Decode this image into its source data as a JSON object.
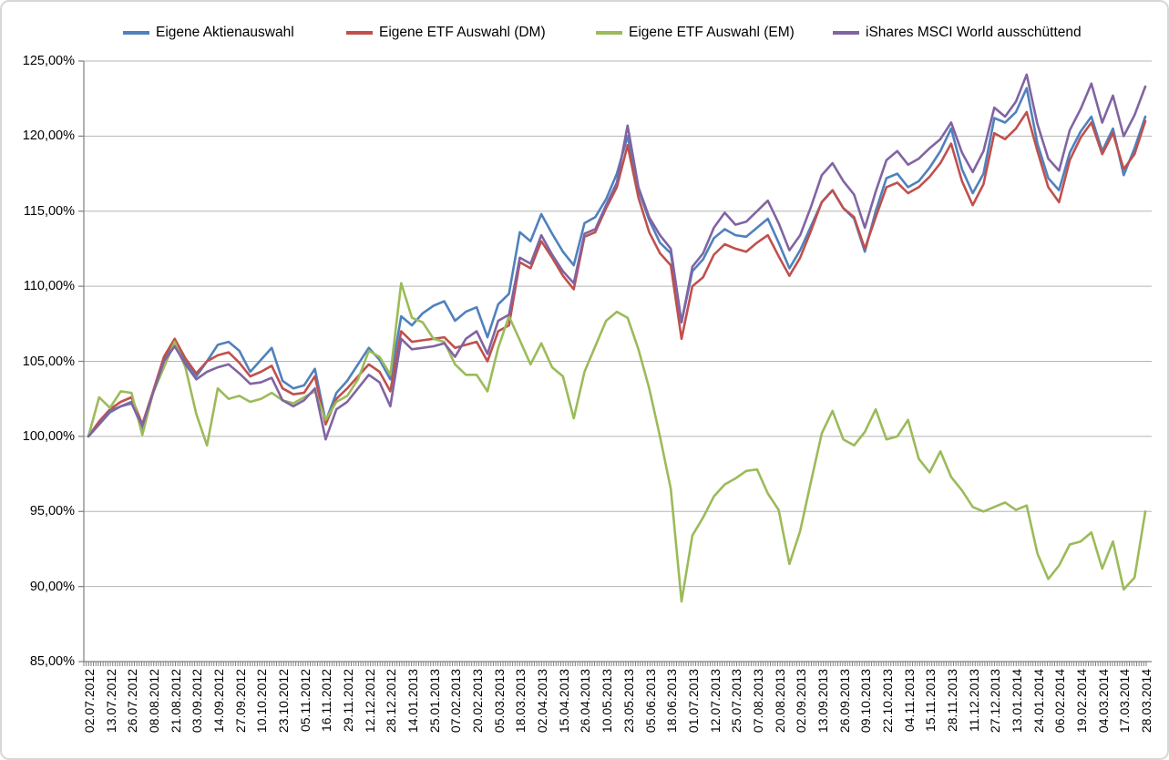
{
  "chart_data": {
    "type": "line",
    "title": "",
    "legend_position": "top",
    "grid": true,
    "ylim": [
      85,
      125
    ],
    "y_gridline_step": 5,
    "y_tick_labels": [
      "125,00%",
      "120,00%",
      "115,00%",
      "110,00%",
      "105,00%",
      "100,00%",
      "95,00%",
      "90,00%",
      "85,00%"
    ],
    "x_axis_note": "daily data 02.07.2012-28.03.2014, labels every ~9 trading days, rotated 90deg",
    "x_tick_labels": [
      "02.07.2012",
      "13.07.2012",
      "26.07.2012",
      "08.08.2012",
      "21.08.2012",
      "03.09.2012",
      "14.09.2012",
      "27.09.2012",
      "10.10.2012",
      "23.10.2012",
      "05.11.2012",
      "16.11.2012",
      "29.11.2012",
      "12.12.2012",
      "28.12.2012",
      "14.01.2013",
      "25.01.2013",
      "07.02.2013",
      "20.02.2013",
      "05.03.2013",
      "18.03.2013",
      "02.04.2013",
      "15.04.2013",
      "26.04.2013",
      "10.05.2013",
      "23.05.2013",
      "05.06.2013",
      "18.06.2013",
      "01.07.2013",
      "12.07.2013",
      "25.07.2013",
      "07.08.2013",
      "20.08.2013",
      "02.09.2013",
      "13.09.2013",
      "26.09.2013",
      "09.10.2013",
      "22.10.2013",
      "04.11.2013",
      "15.11.2013",
      "28.11.2013",
      "11.12.2013",
      "27.12.2013",
      "13.01.2014",
      "24.01.2014",
      "06.02.2014",
      "19.02.2014",
      "04.03.2014",
      "17.03.2014",
      "28.03.2014"
    ],
    "values_per_label": 2,
    "unit": "percent",
    "series": [
      {
        "name": "Eigene Aktienauswahl",
        "color": "#4F81BD",
        "values": [
          100.0,
          100.8,
          101.6,
          102.0,
          102.3,
          100.5,
          102.9,
          105.2,
          106.3,
          105.0,
          104.0,
          105.0,
          106.1,
          106.3,
          105.7,
          104.3,
          105.1,
          105.9,
          103.7,
          103.2,
          103.4,
          104.5,
          101.0,
          102.9,
          103.7,
          104.8,
          105.9,
          105.1,
          103.8,
          108.0,
          107.4,
          108.2,
          108.7,
          109.0,
          107.7,
          108.3,
          108.6,
          106.6,
          108.8,
          109.5,
          113.6,
          113.0,
          114.8,
          113.5,
          112.3,
          111.4,
          114.2,
          114.6,
          115.8,
          117.5,
          120.0,
          116.4,
          114.4,
          112.9,
          112.2,
          107.6,
          111.0,
          111.8,
          113.2,
          113.8,
          113.4,
          113.3,
          113.9,
          114.5,
          112.9,
          111.2,
          112.4,
          114.0,
          115.6,
          116.4,
          115.2,
          114.5,
          112.3,
          115.0,
          117.2,
          117.5,
          116.6,
          117.0,
          117.9,
          119.0,
          120.5,
          117.8,
          116.2,
          117.5,
          121.2,
          120.9,
          121.6,
          123.2,
          119.5,
          117.2,
          116.4,
          118.9,
          120.3,
          121.3,
          119.0,
          120.5,
          117.4,
          119.2,
          121.3
        ]
      },
      {
        "name": "Eigene ETF Auswahl (DM)",
        "color": "#C0504D",
        "values": [
          100.0,
          101.0,
          101.8,
          102.3,
          102.6,
          100.8,
          103.0,
          105.3,
          106.5,
          105.2,
          104.2,
          105.0,
          105.4,
          105.6,
          104.9,
          104.0,
          104.3,
          104.7,
          103.2,
          102.8,
          102.9,
          104.0,
          100.8,
          102.5,
          103.2,
          104.0,
          104.8,
          104.3,
          103.0,
          107.0,
          106.3,
          106.4,
          106.5,
          106.6,
          105.9,
          106.1,
          106.3,
          105.0,
          107.0,
          107.4,
          111.6,
          111.2,
          113.0,
          111.9,
          110.7,
          109.8,
          113.3,
          113.6,
          115.2,
          116.6,
          119.4,
          115.9,
          113.6,
          112.2,
          111.4,
          106.5,
          110.0,
          110.6,
          112.1,
          112.8,
          112.5,
          112.3,
          112.9,
          113.4,
          112.0,
          110.7,
          111.9,
          113.7,
          115.6,
          116.4,
          115.2,
          114.6,
          112.5,
          114.6,
          116.6,
          116.9,
          116.2,
          116.6,
          117.3,
          118.2,
          119.5,
          117.0,
          115.4,
          116.8,
          120.2,
          119.8,
          120.5,
          121.6,
          119.0,
          116.6,
          115.6,
          118.4,
          119.9,
          120.9,
          118.8,
          120.2,
          117.8,
          118.8,
          121.0
        ]
      },
      {
        "name": "Eigene ETF Auswahl (EM)",
        "color": "#9BBB59",
        "values": [
          100.0,
          102.6,
          101.9,
          103.0,
          102.9,
          100.1,
          102.9,
          104.6,
          106.3,
          104.6,
          101.5,
          99.4,
          103.2,
          102.5,
          102.7,
          102.3,
          102.5,
          102.9,
          102.4,
          102.2,
          102.6,
          103.0,
          101.1,
          102.3,
          102.7,
          103.8,
          105.7,
          105.3,
          104.1,
          110.2,
          107.9,
          107.6,
          106.5,
          106.3,
          104.8,
          104.1,
          104.1,
          103.0,
          105.9,
          108.0,
          106.4,
          104.8,
          106.2,
          104.6,
          104.0,
          101.2,
          104.3,
          106.0,
          107.7,
          108.3,
          107.9,
          105.8,
          103.2,
          100.0,
          96.5,
          89.0,
          93.4,
          94.6,
          96.0,
          96.8,
          97.2,
          97.7,
          97.8,
          96.2,
          95.1,
          91.5,
          93.7,
          97.0,
          100.2,
          101.7,
          99.8,
          99.4,
          100.3,
          101.8,
          99.8,
          100.0,
          101.1,
          98.5,
          97.6,
          99.0,
          97.3,
          96.4,
          95.3,
          95.0,
          95.3,
          95.6,
          95.1,
          95.4,
          92.2,
          90.5,
          91.4,
          92.8,
          93.0,
          93.6,
          91.2,
          93.0,
          89.8,
          90.6,
          95.0
        ]
      },
      {
        "name": "iShares MSCI World ausschüttend",
        "color": "#8064A2",
        "values": [
          100.0,
          100.8,
          101.7,
          102.0,
          102.2,
          100.7,
          102.9,
          105.0,
          106.0,
          104.8,
          103.8,
          104.3,
          104.6,
          104.8,
          104.2,
          103.5,
          103.6,
          103.9,
          102.4,
          102.0,
          102.4,
          103.2,
          99.8,
          101.8,
          102.3,
          103.2,
          104.1,
          103.6,
          102.0,
          106.5,
          105.8,
          105.9,
          106.0,
          106.2,
          105.3,
          106.5,
          107.0,
          105.5,
          107.7,
          108.1,
          111.9,
          111.5,
          113.4,
          112.1,
          111.0,
          110.2,
          113.5,
          113.8,
          115.4,
          116.9,
          120.7,
          116.6,
          114.6,
          113.4,
          112.5,
          107.6,
          111.3,
          112.2,
          113.9,
          114.9,
          114.1,
          114.3,
          115.0,
          115.7,
          114.2,
          112.4,
          113.4,
          115.3,
          117.4,
          118.2,
          117.0,
          116.1,
          113.9,
          116.3,
          118.4,
          119.0,
          118.1,
          118.5,
          119.2,
          119.8,
          120.9,
          118.9,
          117.6,
          119.0,
          121.9,
          121.3,
          122.3,
          124.1,
          120.8,
          118.5,
          117.7,
          120.4,
          121.8,
          123.5,
          120.9,
          122.7,
          120.0,
          121.4,
          123.3
        ]
      }
    ]
  },
  "colors": {
    "gridline": "#b5b5b5",
    "axis": "#7f7f7f",
    "text": "#000000",
    "background": "#ffffff"
  }
}
